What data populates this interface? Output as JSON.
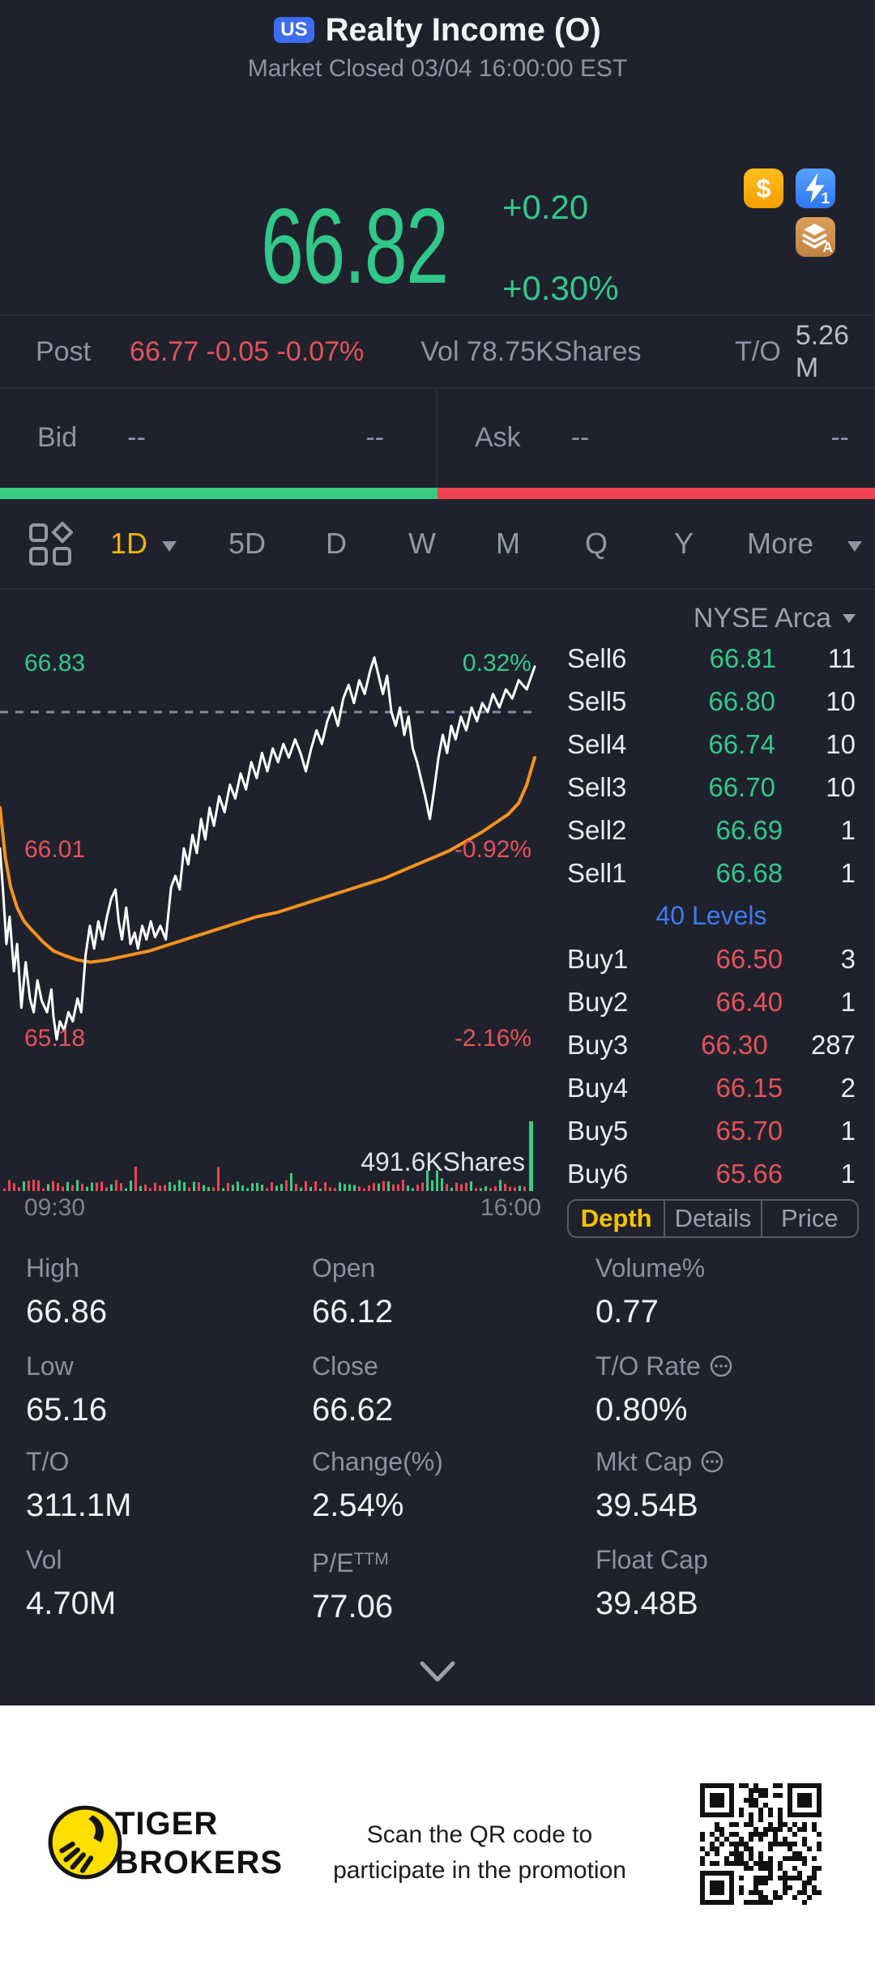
{
  "header": {
    "badge": "US",
    "title": "Realty Income (O)",
    "subtitle": "Market Closed 03/04 16:00:00 EST"
  },
  "quote": {
    "price": "66.82",
    "change": "+0.20",
    "change_pct": "+0.30%"
  },
  "quote_icons": {
    "dollar": "$",
    "flash_num": "1",
    "layers_letter": "A"
  },
  "post": {
    "label": "Post",
    "values": "66.77 -0.05 -0.07%",
    "vol": "Vol 78.75KShares",
    "to_label": "T/O",
    "to_line1": "5.26",
    "to_line2": "M"
  },
  "bid_ask": {
    "bid_label": "Bid",
    "bid_price": "--",
    "bid_size": "--",
    "ask_label": "Ask",
    "ask_price": "--",
    "ask_size": "--"
  },
  "period_tabs": {
    "selected": "1D",
    "items": [
      "1D",
      "5D",
      "D",
      "W",
      "M",
      "Q",
      "Y",
      "More"
    ]
  },
  "orderbook": {
    "venue": "NYSE Arca",
    "levels_link": "40 Levels",
    "sells": [
      {
        "label": "Sell6",
        "price": "66.81",
        "qty": "11"
      },
      {
        "label": "Sell5",
        "price": "66.80",
        "qty": "10"
      },
      {
        "label": "Sell4",
        "price": "66.74",
        "qty": "10"
      },
      {
        "label": "Sell3",
        "price": "66.70",
        "qty": "10"
      },
      {
        "label": "Sell2",
        "price": "66.69",
        "qty": "1"
      },
      {
        "label": "Sell1",
        "price": "66.68",
        "qty": "1"
      }
    ],
    "buys": [
      {
        "label": "Buy1",
        "price": "66.50",
        "qty": "3"
      },
      {
        "label": "Buy2",
        "price": "66.40",
        "qty": "1"
      },
      {
        "label": "Buy3",
        "price": "66.30",
        "qty": "287"
      },
      {
        "label": "Buy4",
        "price": "66.15",
        "qty": "2"
      },
      {
        "label": "Buy5",
        "price": "65.70",
        "qty": "1"
      },
      {
        "label": "Buy6",
        "price": "65.66",
        "qty": "1"
      }
    ],
    "tabs": {
      "selected": "Depth",
      "items": [
        "Depth",
        "Details",
        "Price"
      ]
    }
  },
  "chart_data": {
    "type": "line",
    "y_range": [
      65.18,
      66.83
    ],
    "prev_close": 66.62,
    "y_axis_left_labels": [
      "66.83",
      "66.01",
      "65.18"
    ],
    "y_axis_right_labels": [
      "0.32%",
      "-0.92%",
      "-2.16%"
    ],
    "x_labels": [
      "09:30",
      "16:00"
    ],
    "volume_label": "491.6KShares",
    "series": [
      {
        "name": "price",
        "color": "#ffffff",
        "width": 3,
        "points": [
          [
            0.0,
            66.02
          ],
          [
            0.006,
            65.82
          ],
          [
            0.012,
            65.6
          ],
          [
            0.018,
            65.72
          ],
          [
            0.026,
            65.48
          ],
          [
            0.032,
            65.6
          ],
          [
            0.04,
            65.32
          ],
          [
            0.048,
            65.52
          ],
          [
            0.056,
            65.36
          ],
          [
            0.063,
            65.3
          ],
          [
            0.07,
            65.44
          ],
          [
            0.078,
            65.35
          ],
          [
            0.088,
            65.3
          ],
          [
            0.096,
            65.4
          ],
          [
            0.1,
            65.28
          ],
          [
            0.106,
            65.18
          ],
          [
            0.112,
            65.26
          ],
          [
            0.12,
            65.22
          ],
          [
            0.128,
            65.3
          ],
          [
            0.136,
            65.26
          ],
          [
            0.145,
            65.36
          ],
          [
            0.152,
            65.3
          ],
          [
            0.16,
            65.55
          ],
          [
            0.168,
            65.68
          ],
          [
            0.176,
            65.58
          ],
          [
            0.184,
            65.7
          ],
          [
            0.192,
            65.62
          ],
          [
            0.2,
            65.72
          ],
          [
            0.208,
            65.8
          ],
          [
            0.216,
            65.84
          ],
          [
            0.222,
            65.7
          ],
          [
            0.228,
            65.62
          ],
          [
            0.236,
            65.76
          ],
          [
            0.244,
            65.6
          ],
          [
            0.252,
            65.65
          ],
          [
            0.258,
            65.58
          ],
          [
            0.266,
            65.68
          ],
          [
            0.274,
            65.62
          ],
          [
            0.282,
            65.7
          ],
          [
            0.29,
            65.63
          ],
          [
            0.3,
            65.68
          ],
          [
            0.31,
            65.62
          ],
          [
            0.32,
            65.85
          ],
          [
            0.328,
            65.9
          ],
          [
            0.336,
            65.84
          ],
          [
            0.344,
            66.02
          ],
          [
            0.352,
            65.95
          ],
          [
            0.36,
            66.08
          ],
          [
            0.368,
            66.0
          ],
          [
            0.376,
            66.15
          ],
          [
            0.384,
            66.06
          ],
          [
            0.392,
            66.2
          ],
          [
            0.4,
            66.12
          ],
          [
            0.41,
            66.25
          ],
          [
            0.42,
            66.18
          ],
          [
            0.43,
            66.3
          ],
          [
            0.44,
            66.24
          ],
          [
            0.45,
            66.35
          ],
          [
            0.46,
            66.28
          ],
          [
            0.47,
            66.4
          ],
          [
            0.48,
            66.33
          ],
          [
            0.49,
            66.44
          ],
          [
            0.5,
            66.36
          ],
          [
            0.51,
            66.46
          ],
          [
            0.52,
            66.4
          ],
          [
            0.53,
            66.48
          ],
          [
            0.54,
            66.42
          ],
          [
            0.552,
            66.5
          ],
          [
            0.562,
            66.44
          ],
          [
            0.572,
            66.36
          ],
          [
            0.582,
            66.46
          ],
          [
            0.592,
            66.54
          ],
          [
            0.602,
            66.48
          ],
          [
            0.612,
            66.58
          ],
          [
            0.622,
            66.64
          ],
          [
            0.632,
            66.56
          ],
          [
            0.642,
            66.68
          ],
          [
            0.652,
            66.74
          ],
          [
            0.662,
            66.66
          ],
          [
            0.672,
            66.76
          ],
          [
            0.682,
            66.7
          ],
          [
            0.692,
            66.8
          ],
          [
            0.7,
            66.86
          ],
          [
            0.708,
            66.78
          ],
          [
            0.716,
            66.7
          ],
          [
            0.724,
            66.78
          ],
          [
            0.732,
            66.62
          ],
          [
            0.74,
            66.56
          ],
          [
            0.748,
            66.64
          ],
          [
            0.756,
            66.52
          ],
          [
            0.764,
            66.6
          ],
          [
            0.772,
            66.46
          ],
          [
            0.78,
            66.4
          ],
          [
            0.788,
            66.32
          ],
          [
            0.796,
            66.24
          ],
          [
            0.804,
            66.15
          ],
          [
            0.812,
            66.28
          ],
          [
            0.82,
            66.42
          ],
          [
            0.828,
            66.52
          ],
          [
            0.836,
            66.44
          ],
          [
            0.844,
            66.56
          ],
          [
            0.852,
            66.5
          ],
          [
            0.862,
            66.6
          ],
          [
            0.872,
            66.54
          ],
          [
            0.882,
            66.64
          ],
          [
            0.892,
            66.58
          ],
          [
            0.902,
            66.66
          ],
          [
            0.912,
            66.62
          ],
          [
            0.922,
            66.7
          ],
          [
            0.934,
            66.64
          ],
          [
            0.946,
            66.72
          ],
          [
            0.958,
            66.68
          ],
          [
            0.97,
            66.76
          ],
          [
            0.985,
            66.72
          ],
          [
            1.0,
            66.82
          ]
        ]
      },
      {
        "name": "overlay",
        "color": "#f5921e",
        "width": 4,
        "points": [
          [
            0.0,
            66.2
          ],
          [
            0.01,
            65.98
          ],
          [
            0.02,
            65.85
          ],
          [
            0.032,
            65.76
          ],
          [
            0.045,
            65.7
          ],
          [
            0.06,
            65.66
          ],
          [
            0.08,
            65.61
          ],
          [
            0.1,
            65.57
          ],
          [
            0.12,
            65.55
          ],
          [
            0.145,
            65.53
          ],
          [
            0.17,
            65.52
          ],
          [
            0.2,
            65.53
          ],
          [
            0.24,
            65.55
          ],
          [
            0.28,
            65.57
          ],
          [
            0.32,
            65.6
          ],
          [
            0.36,
            65.63
          ],
          [
            0.4,
            65.66
          ],
          [
            0.44,
            65.69
          ],
          [
            0.48,
            65.72
          ],
          [
            0.52,
            65.74
          ],
          [
            0.56,
            65.77
          ],
          [
            0.6,
            65.8
          ],
          [
            0.64,
            65.83
          ],
          [
            0.68,
            65.86
          ],
          [
            0.72,
            65.89
          ],
          [
            0.76,
            65.93
          ],
          [
            0.8,
            65.97
          ],
          [
            0.84,
            66.01
          ],
          [
            0.87,
            66.05
          ],
          [
            0.9,
            66.09
          ],
          [
            0.925,
            66.13
          ],
          [
            0.95,
            66.17
          ],
          [
            0.97,
            66.22
          ],
          [
            0.985,
            66.3
          ],
          [
            1.0,
            66.42
          ]
        ]
      }
    ],
    "colors": {
      "up": "#3bcb82",
      "down": "#ef4352",
      "dashed": "#848aa0"
    }
  },
  "stats": {
    "cells": [
      {
        "label": "High",
        "value": "66.86"
      },
      {
        "label": "Open",
        "value": "66.12"
      },
      {
        "label": "Volume%",
        "value": "0.77"
      },
      {
        "label": "Low",
        "value": "65.16"
      },
      {
        "label": "Close",
        "value": "66.62"
      },
      {
        "label": "T/O Rate",
        "value": "0.80%"
      },
      {
        "label": "T/O",
        "value": "311.1M"
      },
      {
        "label": "Change(%)",
        "value": "2.54%"
      },
      {
        "label": "Mkt Cap",
        "value": "39.54B"
      },
      {
        "label": "Vol",
        "value": "4.70M"
      },
      {
        "label": "P/E",
        "sup": "TTM",
        "value": "77.06"
      },
      {
        "label": "Float Cap",
        "value": "39.48B"
      }
    ]
  },
  "footer": {
    "brand_line1": "TIGER",
    "brand_line2": "BROKERS",
    "promo_line1": "Scan the QR code to",
    "promo_line2": "participate in the promotion"
  },
  "colors": {
    "background": "#1f222c",
    "up_green": "#31c88a",
    "down_red": "#e4525c",
    "gold_accent": "#f0b400",
    "link_blue": "#3e7bf0",
    "overlay_orange": "#f5921e"
  }
}
